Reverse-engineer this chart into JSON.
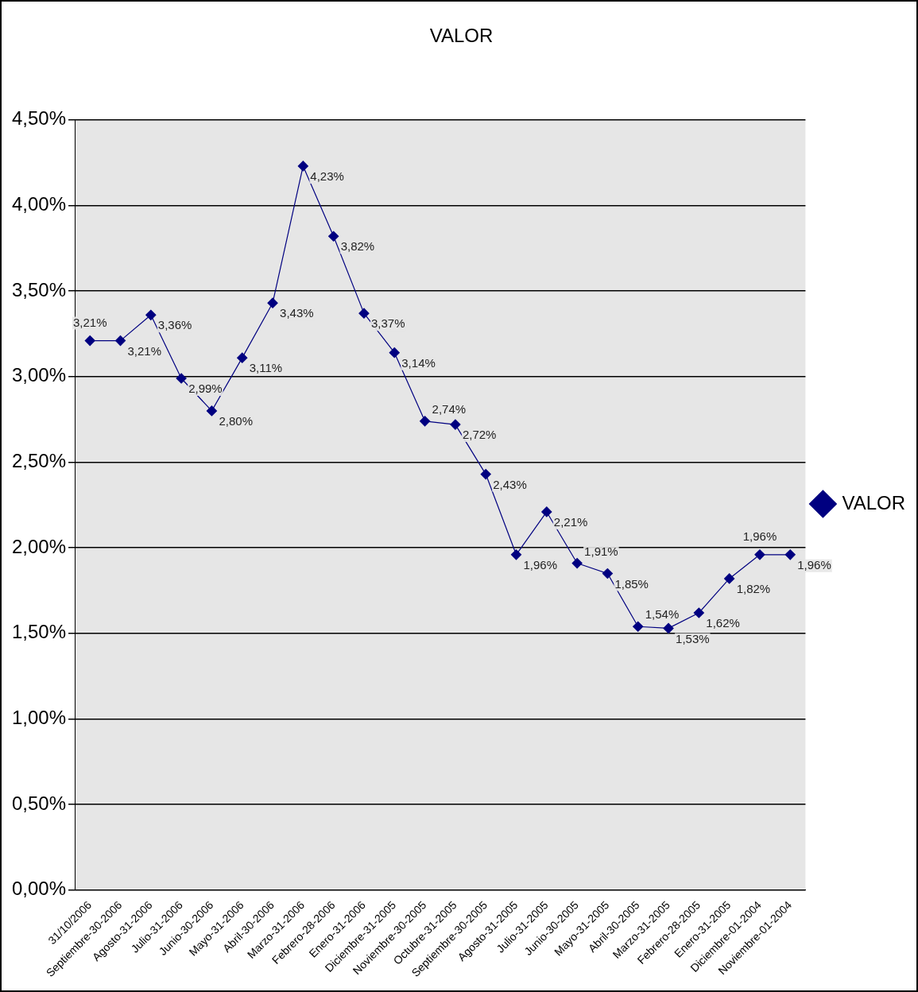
{
  "chart_data": {
    "type": "line",
    "title": "VALOR",
    "categories": [
      "31/10/2006",
      "Septiembre-30-2006",
      "Agosto-31-2006",
      "Julio-31-2006",
      "Junio-30-2006",
      "Mayo-31-2006",
      "Abril-30-2006",
      "Marzo-31-2006",
      "Febrero-28-2006",
      "Enero-31-2006",
      "Diciembre-31-2005",
      "Noviembre-30-2005",
      "Octubre-31-2005",
      "Septiembre-30-2005",
      "Agosto-31-2005",
      "Julio-31-2005",
      "Junio-30-2005",
      "Mayo-31-2005",
      "Abril-30-2005",
      "Marzo-31-2005",
      "Febrero-28-2005",
      "Enero-31-2005",
      "Diciembre-01-2004",
      "Noviembre-01-2004"
    ],
    "series": [
      {
        "name": "VALOR",
        "color": "#000080",
        "values": [
          3.21,
          3.21,
          3.36,
          2.99,
          2.8,
          3.11,
          3.43,
          4.23,
          3.82,
          3.37,
          3.14,
          2.74,
          2.72,
          2.43,
          1.96,
          2.21,
          1.91,
          1.85,
          1.54,
          1.53,
          1.62,
          1.82,
          1.96,
          1.96
        ],
        "value_labels": [
          "3,21%",
          "3,21%",
          "3,36%",
          "2,99%",
          "2,80%",
          "3,11%",
          "3,43%",
          "4,23%",
          "3,82%",
          "3,37%",
          "3,14%",
          "2,74%",
          "2,72%",
          "2,43%",
          "1,96%",
          "2,21%",
          "1,91%",
          "1,85%",
          "1,54%",
          "1,53%",
          "1,62%",
          "1,82%",
          "1,96%",
          "1,96%"
        ]
      }
    ],
    "ylim": [
      0,
      4.5
    ],
    "yticks": [
      {
        "value": 0,
        "label": "0,00%"
      },
      {
        "value": 0.5,
        "label": "0,50%"
      },
      {
        "value": 1,
        "label": "1,00%"
      },
      {
        "value": 1.5,
        "label": "1,50%"
      },
      {
        "value": 2,
        "label": "2,00%"
      },
      {
        "value": 2.5,
        "label": "2,50%"
      },
      {
        "value": 3,
        "label": "3,00%"
      },
      {
        "value": 3.5,
        "label": "3,50%"
      },
      {
        "value": 4,
        "label": "4,00%"
      },
      {
        "value": 4.5,
        "label": "4,50%"
      }
    ],
    "grid": "y",
    "legend": "right",
    "marker": "diamond",
    "line_style": "solid"
  }
}
